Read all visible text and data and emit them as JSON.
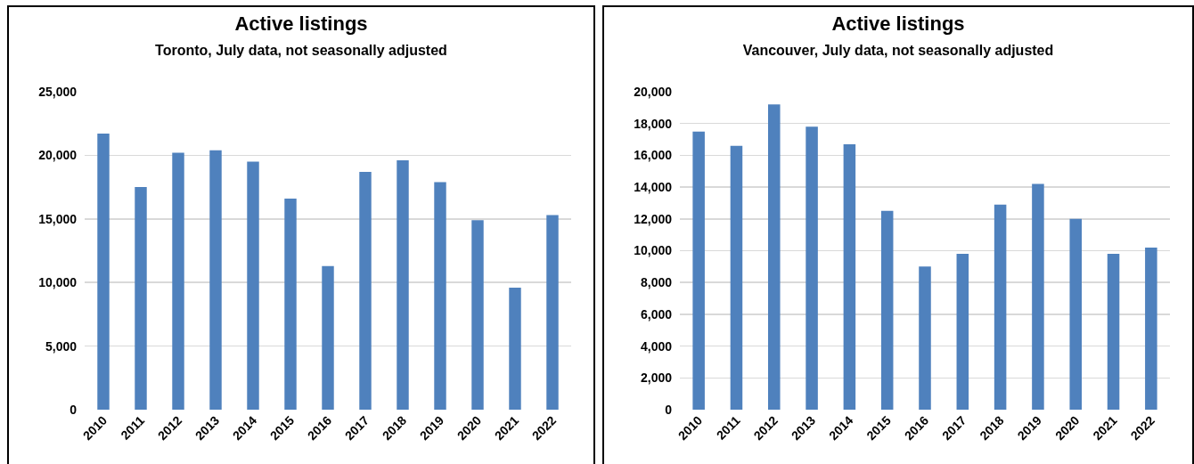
{
  "chart_data": [
    {
      "type": "bar",
      "title": "Active listings",
      "subtitle": "Toronto, July data, not seasonally adjusted",
      "categories": [
        "2010",
        "2011",
        "2012",
        "2013",
        "2014",
        "2015",
        "2016",
        "2017",
        "2018",
        "2019",
        "2020",
        "2021",
        "2022"
      ],
      "values": [
        21700,
        17500,
        20200,
        20400,
        19500,
        16600,
        11300,
        18700,
        19600,
        17900,
        14900,
        9600,
        15300
      ],
      "color": "#4f81bd",
      "ylim": [
        0,
        25000
      ],
      "yticks": [
        {
          "value": 0,
          "label": "0"
        },
        {
          "value": 5000,
          "label": "5,000"
        },
        {
          "value": 10000,
          "label": "10,000"
        },
        {
          "value": 15000,
          "label": "15,000"
        },
        {
          "value": 20000,
          "label": "20,000"
        },
        {
          "value": 25000,
          "label": "25,000"
        }
      ],
      "grid": "y"
    },
    {
      "type": "bar",
      "title": "Active listings",
      "subtitle": "Vancouver, July data, not seasonally adjusted",
      "categories": [
        "2010",
        "2011",
        "2012",
        "2013",
        "2014",
        "2015",
        "2016",
        "2017",
        "2018",
        "2019",
        "2020",
        "2021",
        "2022"
      ],
      "values": [
        17500,
        16600,
        19200,
        17800,
        16700,
        12500,
        9000,
        9800,
        12900,
        14200,
        12000,
        9800,
        10200
      ],
      "color": "#4f81bd",
      "ylim": [
        0,
        20000
      ],
      "yticks": [
        {
          "value": 0,
          "label": "0"
        },
        {
          "value": 2000,
          "label": "2,000"
        },
        {
          "value": 4000,
          "label": "4,000"
        },
        {
          "value": 6000,
          "label": "6,000"
        },
        {
          "value": 8000,
          "label": "8,000"
        },
        {
          "value": 10000,
          "label": "10,000"
        },
        {
          "value": 12000,
          "label": "12,000"
        },
        {
          "value": 14000,
          "label": "14,000"
        },
        {
          "value": 16000,
          "label": "16,000"
        },
        {
          "value": 18000,
          "label": "18,000"
        },
        {
          "value": 20000,
          "label": "20,000"
        }
      ],
      "grid": "y"
    }
  ]
}
